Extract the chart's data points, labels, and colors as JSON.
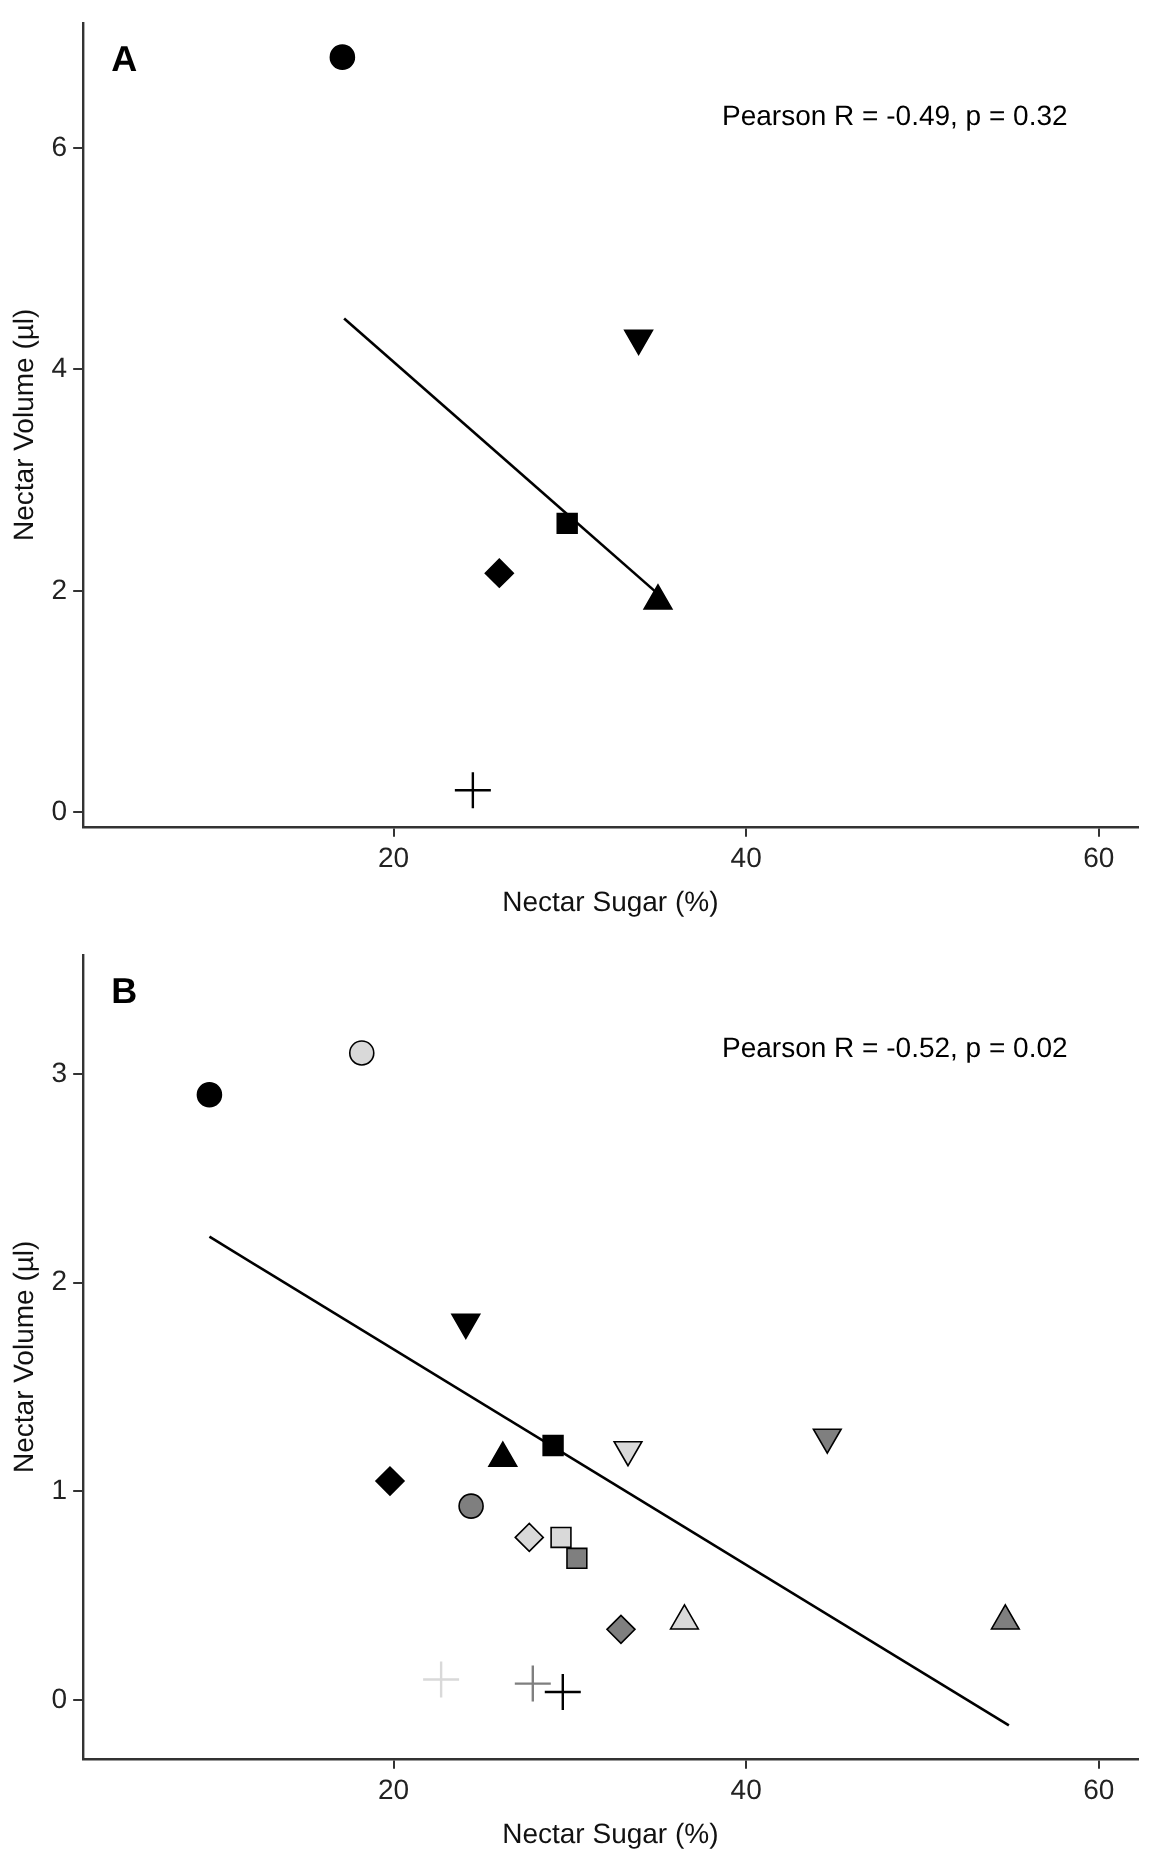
{
  "chart_data": [
    {
      "type": "scatter",
      "title": "A",
      "xlabel": "Nectar Sugar (%)",
      "ylabel": "Nectar Volume (µl)",
      "annotations": [
        "Pearson R = -0.49, p = 0.32"
      ],
      "xlim": [
        2.4,
        62.2
      ],
      "ylim": [
        -0.13,
        7.13
      ],
      "xticks": [
        20,
        40,
        60
      ],
      "yticks": [
        0,
        2,
        4,
        6
      ],
      "grid": false,
      "legend": false,
      "series": [
        {
          "type": "scatter",
          "marker": "circle",
          "x": [
            17.1
          ],
          "values": [
            6.82
          ],
          "colors": [
            "#000000"
          ]
        },
        {
          "type": "scatter",
          "marker": "triangle-down",
          "x": [
            33.9
          ],
          "values": [
            4.28
          ],
          "colors": [
            "#000000"
          ]
        },
        {
          "type": "scatter",
          "marker": "square",
          "x": [
            29.85
          ],
          "values": [
            2.61
          ],
          "colors": [
            "#000000"
          ]
        },
        {
          "type": "scatter",
          "marker": "diamond",
          "x": [
            26.0
          ],
          "values": [
            2.16
          ],
          "colors": [
            "#000000"
          ]
        },
        {
          "type": "scatter",
          "marker": "triangle",
          "x": [
            35.0
          ],
          "values": [
            1.91
          ],
          "colors": [
            "#000000"
          ]
        },
        {
          "type": "scatter",
          "marker": "cross",
          "x": [
            24.5
          ],
          "values": [
            0.2
          ],
          "colors": [
            "#000000"
          ]
        },
        {
          "type": "line",
          "marker": "none",
          "color": "#000000",
          "x": [
            17.2,
            34.95
          ],
          "values": [
            4.46,
            1.98
          ]
        }
      ]
    },
    {
      "type": "scatter",
      "title": "B",
      "xlabel": "Nectar Sugar (%)",
      "ylabel": "Nectar Volume (µl)",
      "annotations": [
        "Pearson R = -0.52, p = 0.02"
      ],
      "xlim": [
        2.4,
        62.2
      ],
      "ylim": [
        -0.28,
        3.57
      ],
      "xticks": [
        20,
        40,
        60
      ],
      "yticks": [
        0,
        1,
        2,
        3
      ],
      "grid": false,
      "legend": false,
      "series": [
        {
          "type": "scatter",
          "marker": "circle",
          "x": [
            9.56,
            18.2,
            24.4
          ],
          "values": [
            2.9,
            3.1,
            0.93
          ],
          "colors": [
            "#000000",
            "#d9d9d9",
            "#7f7f7f"
          ]
        },
        {
          "type": "scatter",
          "marker": "triangle-down",
          "x": [
            24.1,
            33.3,
            44.6
          ],
          "values": [
            1.81,
            1.2,
            1.26
          ],
          "colors": [
            "#000000",
            "#d9d9d9",
            "#7f7f7f"
          ]
        },
        {
          "type": "scatter",
          "marker": "square",
          "x": [
            29.05,
            29.5,
            30.4
          ],
          "values": [
            1.22,
            0.78,
            0.68
          ],
          "colors": [
            "#000000",
            "#d9d9d9",
            "#7f7f7f"
          ]
        },
        {
          "type": "scatter",
          "marker": "diamond",
          "x": [
            19.8,
            27.7,
            32.9
          ],
          "values": [
            1.05,
            0.78,
            0.34
          ],
          "colors": [
            "#000000",
            "#d9d9d9",
            "#7f7f7f"
          ]
        },
        {
          "type": "scatter",
          "marker": "triangle",
          "x": [
            26.2,
            36.5,
            54.7
          ],
          "values": [
            1.16,
            0.38,
            0.38
          ],
          "colors": [
            "#000000",
            "#d9d9d9",
            "#7f7f7f"
          ]
        },
        {
          "type": "scatter",
          "marker": "cross",
          "x": [
            29.6,
            22.7,
            27.9
          ],
          "values": [
            0.04,
            0.1,
            0.08
          ],
          "colors": [
            "#000000",
            "#d9d9d9",
            "#7f7f7f"
          ]
        },
        {
          "type": "line",
          "marker": "none",
          "color": "#000000",
          "x": [
            9.56,
            54.9
          ],
          "values": [
            2.22,
            -0.12
          ]
        }
      ]
    }
  ]
}
